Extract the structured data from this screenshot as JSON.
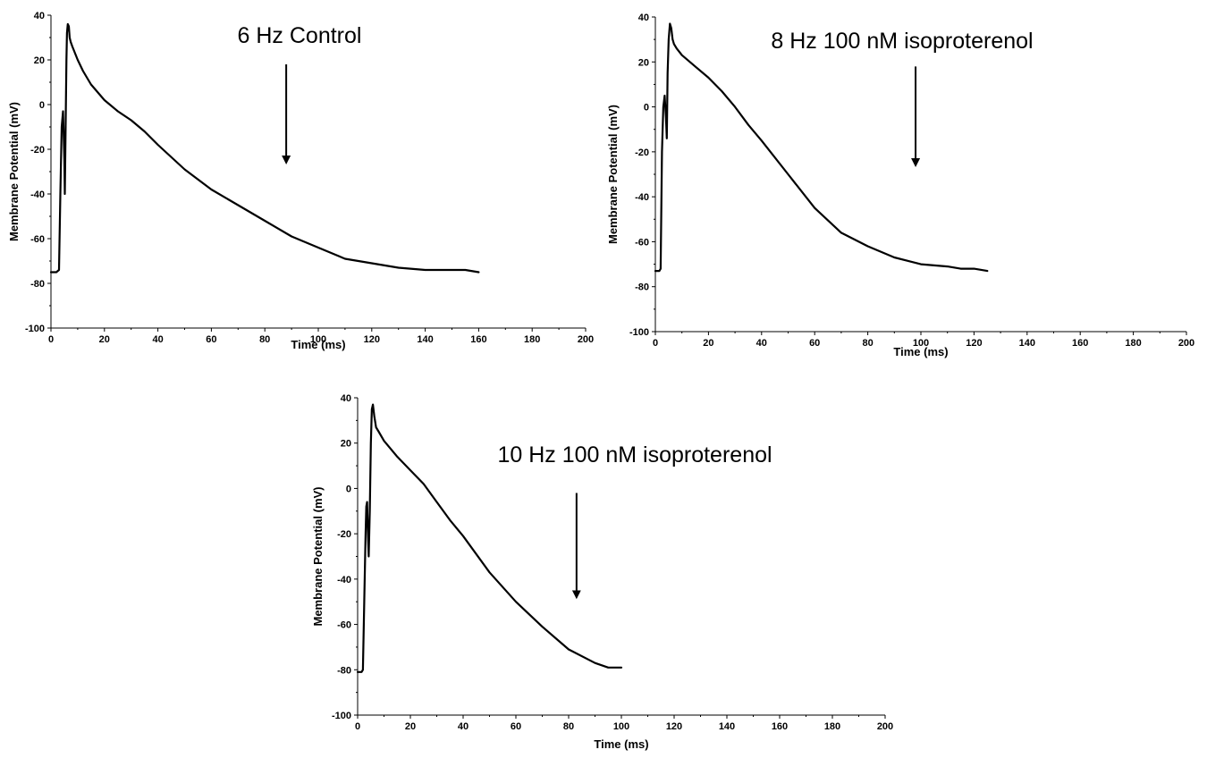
{
  "chart_data": [
    {
      "type": "line",
      "title": "6 Hz Control",
      "xlabel": "Time (ms)",
      "ylabel": "Membrane Potential (mV)",
      "xlim": [
        0,
        200
      ],
      "ylim": [
        -100,
        40
      ],
      "xticks": [
        0,
        20,
        40,
        60,
        80,
        100,
        120,
        140,
        160,
        180,
        200
      ],
      "yticks": [
        -100,
        -80,
        -60,
        -40,
        -20,
        0,
        20,
        40
      ],
      "grid": false,
      "arrow": {
        "x": 88,
        "y_from": 18,
        "y_to": -30
      },
      "series": [
        {
          "x": [
            0,
            2,
            3,
            3.5,
            4,
            4.5,
            5,
            5.2,
            5.5,
            5.8,
            6,
            6.3,
            6.7,
            7,
            7.4,
            8,
            9,
            10,
            12,
            15,
            20,
            25,
            30,
            35,
            40,
            50,
            60,
            70,
            80,
            90,
            100,
            110,
            120,
            130,
            140,
            150,
            155,
            160
          ],
          "y": [
            -75,
            -75,
            -74,
            -40,
            -10,
            -3,
            -25,
            -40,
            -10,
            20,
            32,
            36,
            35,
            30,
            28,
            26,
            23,
            20,
            15,
            9,
            2,
            -3,
            -7,
            -12,
            -18,
            -29,
            -38,
            -45,
            -52,
            -59,
            -64,
            -69,
            -71,
            -73,
            -74,
            -74,
            -74,
            -75
          ]
        }
      ]
    },
    {
      "type": "line",
      "title": "8 Hz 100 nM isoproterenol",
      "xlabel": "Time (ms)",
      "ylabel": "Membrane Potential (mV)",
      "xlim": [
        0,
        200
      ],
      "ylim": [
        -100,
        40
      ],
      "xticks": [
        0,
        20,
        40,
        60,
        80,
        100,
        120,
        140,
        160,
        180,
        200
      ],
      "yticks": [
        -100,
        -80,
        -60,
        -40,
        -20,
        0,
        20,
        40
      ],
      "grid": false,
      "arrow": {
        "x": 98,
        "y_from": 18,
        "y_to": -30
      },
      "series": [
        {
          "x": [
            0,
            1.5,
            2,
            2.5,
            3,
            3.5,
            4,
            4.3,
            4.6,
            5,
            5.5,
            6,
            6.5,
            7,
            8,
            10,
            15,
            20,
            25,
            30,
            35,
            40,
            50,
            60,
            70,
            80,
            90,
            100,
            110,
            115,
            120,
            125
          ],
          "y": [
            -73,
            -73,
            -72,
            -20,
            0,
            5,
            -5,
            -14,
            15,
            30,
            37,
            35,
            30,
            28,
            26,
            23,
            18,
            13,
            7,
            0,
            -8,
            -15,
            -30,
            -45,
            -56,
            -62,
            -67,
            -70,
            -71,
            -72,
            -72,
            -73
          ]
        }
      ]
    },
    {
      "type": "line",
      "title": "10 Hz 100 nM isoproterenol",
      "xlabel": "Time (ms)",
      "ylabel": "Membrane Potential (mV)",
      "xlim": [
        0,
        200
      ],
      "ylim": [
        -100,
        40
      ],
      "xticks": [
        0,
        20,
        40,
        60,
        80,
        100,
        120,
        140,
        160,
        180,
        200
      ],
      "yticks": [
        -100,
        -80,
        -60,
        -40,
        -20,
        0,
        20,
        40
      ],
      "grid": false,
      "arrow": {
        "x": 83,
        "y_from": -2,
        "y_to": -52
      },
      "series": [
        {
          "x": [
            0,
            1.5,
            2,
            2.5,
            3,
            3.3,
            3.6,
            3.9,
            4.2,
            4.6,
            5,
            5.4,
            5.8,
            6.3,
            7,
            8,
            10,
            15,
            20,
            25,
            30,
            35,
            40,
            50,
            60,
            70,
            80,
            90,
            95,
            100
          ],
          "y": [
            -81,
            -81,
            -80,
            -50,
            -20,
            -8,
            -6,
            -20,
            -30,
            -10,
            20,
            35,
            37,
            32,
            27,
            25,
            21,
            14,
            8,
            2,
            -6,
            -14,
            -21,
            -37,
            -50,
            -61,
            -71,
            -77,
            -79,
            -79
          ]
        }
      ]
    }
  ]
}
